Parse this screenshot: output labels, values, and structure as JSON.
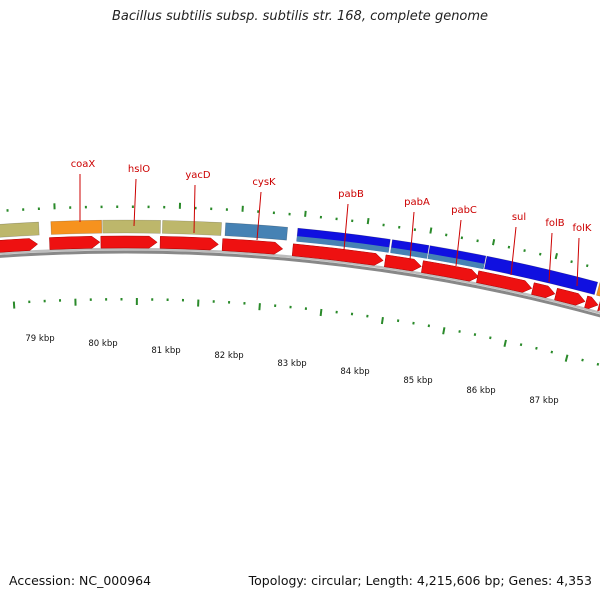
{
  "title": "Bacillus subtilis subsp. subtilis str. 168, complete genome",
  "footer": {
    "accession": "Accession: NC_000964",
    "summary": "Topology: circular; Length: 4,215,606 bp; Genes: 4,353"
  },
  "colors": {
    "gene_label": "#cc0000",
    "tick": "#2a8a2a",
    "cds_arrow": "#ee1111",
    "backbone": "#888888",
    "orange": "#f6921e",
    "khaki": "#bdb76b",
    "steelblue": "#4682b4",
    "blue": "#1010e0"
  },
  "gene_labels": [
    "coaX",
    "hslO",
    "yacD",
    "cysK",
    "pabB",
    "pabA",
    "pabC",
    "sul",
    "folB",
    "folK"
  ],
  "kbp_labels": [
    "79 kbp",
    "80 kbp",
    "81 kbp",
    "82 kbp",
    "83 kbp",
    "84 kbp",
    "85 kbp",
    "86 kbp",
    "87 kbp"
  ]
}
